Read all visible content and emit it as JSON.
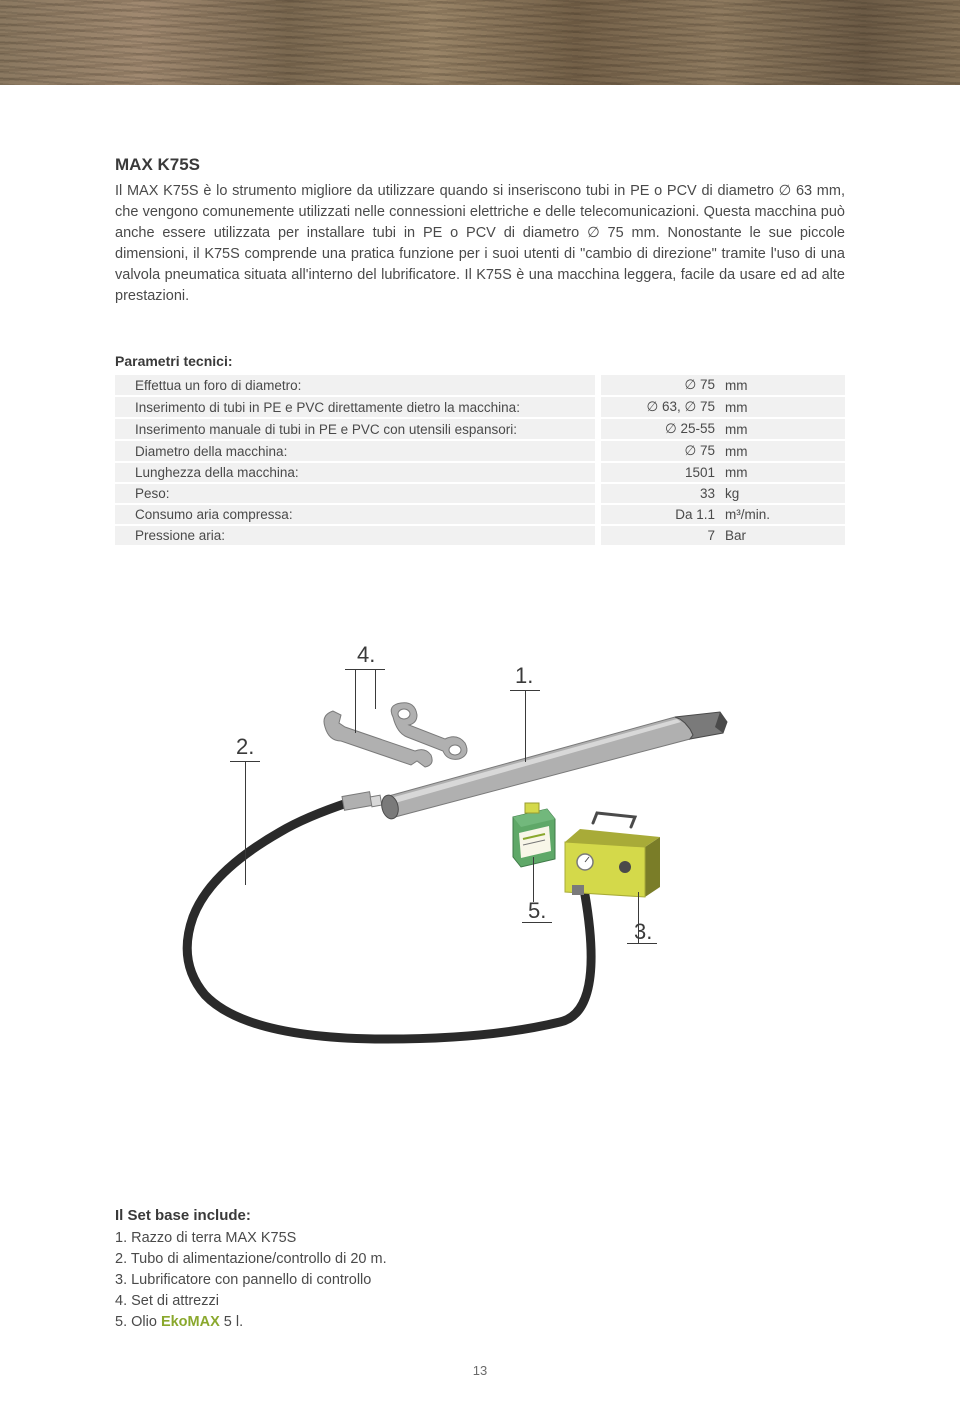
{
  "title": "MAX K75S",
  "desc": "Il MAX K75S è lo strumento migliore da utilizzare quando si inseriscono tubi in PE o PCV di diametro ∅ 63 mm, che vengono comunemente utilizzati nelle connessioni elettriche e delle telecomunicazioni. Questa macchina può anche essere utilizzata per installare tubi in PE o PCV di diametro ∅ 75 mm. Nonostante le sue piccole dimensioni, il K75S comprende una pratica funzione per i suoi utenti di \"cambio di direzione\" tramite l'uso di una valvola pneumatica situata all'interno del lubrificatore. Il K75S è una macchina leggera, facile da usare ed ad alte prestazioni.",
  "params_heading": "Parametri tecnici:",
  "params": [
    {
      "label": "Effettua un foro di diametro:",
      "value": "∅ 75",
      "unit": "mm"
    },
    {
      "label": "Inserimento di tubi in PE e PVC direttamente dietro la macchina:",
      "value": "∅ 63, ∅ 75",
      "unit": "mm"
    },
    {
      "label": "Inserimento manuale di tubi in PE e PVC con utensili espansori:",
      "value": "∅ 25-55",
      "unit": "mm"
    },
    {
      "label": "Diametro della macchina:",
      "value": "∅ 75",
      "unit": "mm"
    },
    {
      "label": "Lunghezza della macchina:",
      "value": "1501",
      "unit": "mm"
    },
    {
      "label": "Peso:",
      "value": "33",
      "unit": "kg"
    },
    {
      "label": "Consumo aria compressa:",
      "value": "Da 1.1",
      "unit": "m³/min."
    },
    {
      "label": "Pressione aria:",
      "value": "7",
      "unit": "Bar"
    }
  ],
  "callouts": {
    "c1": "1.",
    "c2": "2.",
    "c3": "3.",
    "c4": "4.",
    "c5": "5."
  },
  "diagram": {
    "colors": {
      "metal_light": "#d8d8d8",
      "metal_mid": "#b0b0b0",
      "metal_dark": "#7a7a7a",
      "metal_vdark": "#4a4a4a",
      "hose": "#2a2a2a",
      "box_body": "#d4d94a",
      "box_shadow": "#a8ab38",
      "box_dark": "#7a7d28",
      "oil_body": "#5fa868",
      "oil_cap": "#d4d94a",
      "oil_label": "#f8f6e8"
    }
  },
  "set_heading": "Il Set base include:",
  "set_items": [
    {
      "n": "1.",
      "text": "Razzo di terra MAX K75S"
    },
    {
      "n": "2.",
      "text": "Tubo di alimentazione/controllo di 20 m."
    },
    {
      "n": "3.",
      "text": "Lubrificatore con pannello di controllo"
    },
    {
      "n": "4.",
      "text": "Set di attrezzi"
    },
    {
      "n": "5.",
      "html": "Olio <span class=\"eko\">EkoMAX</span> 5 l."
    }
  ],
  "page_num": "13"
}
